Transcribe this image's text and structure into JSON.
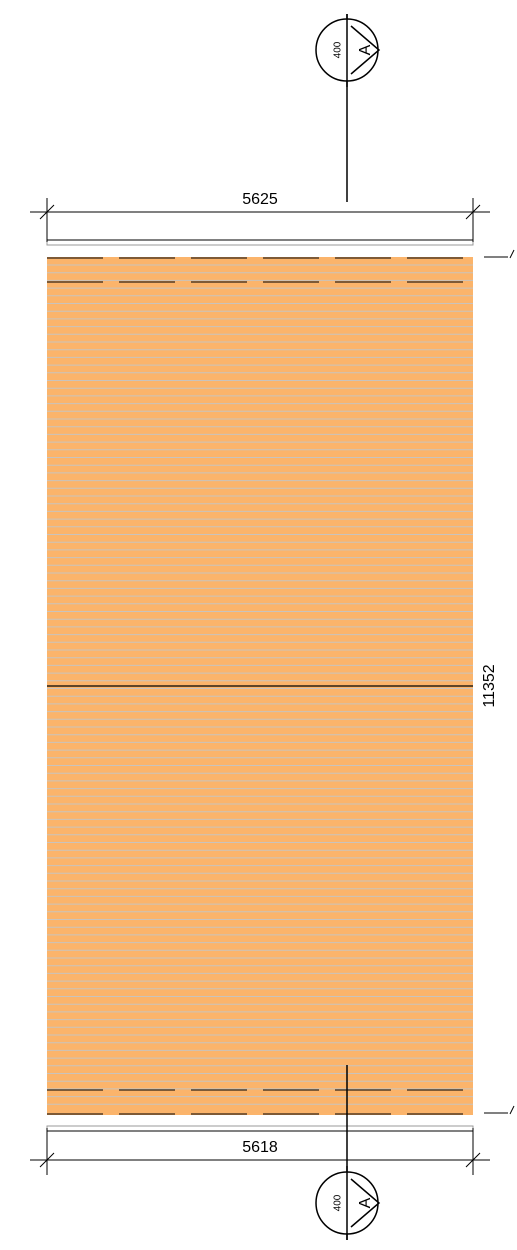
{
  "dimensions": {
    "top": "5625",
    "bottom": "5618",
    "right": "11352"
  },
  "section_markers": [
    {
      "scale": "400",
      "label": "A"
    },
    {
      "scale": "400",
      "label": "A"
    }
  ]
}
